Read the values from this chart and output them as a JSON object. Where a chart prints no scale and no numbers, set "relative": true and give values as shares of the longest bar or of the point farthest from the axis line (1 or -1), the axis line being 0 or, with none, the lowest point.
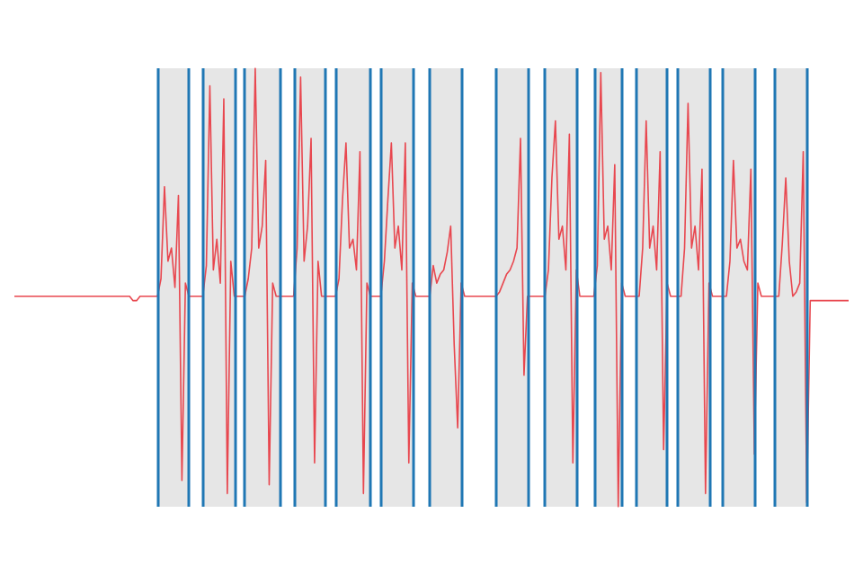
{
  "chart_data": {
    "type": "line",
    "relative": true,
    "marker": "none",
    "line_style": "solid",
    "categories": [
      null,
      null,
      null,
      null,
      null,
      null,
      null,
      null,
      null,
      null,
      null,
      null,
      null,
      null,
      null,
      null,
      null,
      null,
      null,
      null,
      null,
      null,
      null,
      null,
      null,
      null,
      null,
      null,
      null,
      null,
      null,
      null,
      null,
      null,
      null,
      null,
      null,
      null,
      null,
      null,
      null,
      null,
      null,
      null,
      null,
      null,
      null,
      null,
      null,
      null,
      null,
      null,
      null,
      null,
      null,
      null,
      null,
      null,
      null,
      null,
      null,
      null,
      null,
      null,
      null,
      null,
      null,
      null,
      null,
      null,
      null,
      null,
      null,
      null,
      null,
      null,
      null,
      null,
      null,
      null,
      null,
      null,
      null,
      null,
      null,
      null,
      null,
      null,
      null,
      null,
      null,
      null,
      null,
      null,
      null,
      null,
      null,
      null,
      null,
      null,
      null,
      null,
      null,
      null,
      null,
      null,
      null,
      null,
      null,
      null,
      null,
      null,
      null,
      null,
      null,
      null,
      null,
      null,
      null,
      null,
      null,
      null,
      null,
      null,
      null,
      null,
      null,
      null,
      null,
      null,
      null,
      null,
      null,
      null,
      null,
      null,
      null,
      null,
      null,
      null,
      null,
      null,
      null,
      null,
      null,
      null,
      null,
      null,
      null,
      null,
      null,
      null,
      null,
      null,
      null,
      null,
      null,
      null,
      null,
      null,
      null,
      null,
      null,
      null,
      null,
      null,
      null,
      null,
      null,
      null,
      null,
      null,
      null,
      null,
      null,
      null,
      null,
      null,
      null,
      null,
      null,
      null,
      null,
      null,
      null,
      null,
      null,
      null,
      null,
      null,
      null,
      null,
      null,
      null,
      null,
      null,
      null,
      null,
      null,
      null,
      null,
      null,
      null,
      null,
      null,
      null,
      null,
      null,
      null,
      null,
      null,
      null,
      null,
      null,
      null,
      null,
      null,
      null,
      null,
      null,
      null,
      null,
      null,
      null,
      null,
      null,
      null,
      null,
      null,
      null,
      null,
      null,
      null,
      null,
      null,
      null,
      null,
      null,
      null,
      null
    ],
    "series": [
      {
        "color": "#e8474f",
        "values": [
          0.48,
          0.48,
          0.48,
          0.48,
          0.48,
          0.48,
          0.48,
          0.48,
          0.48,
          0.48,
          0.48,
          0.48,
          0.48,
          0.48,
          0.48,
          0.48,
          0.48,
          0.48,
          0.48,
          0.48,
          0.48,
          0.48,
          0.48,
          0.48,
          0.48,
          0.48,
          0.48,
          0.48,
          0.48,
          0.48,
          0.48,
          0.48,
          0.48,
          0.48,
          0.47,
          0.47,
          0.48,
          0.48,
          0.48,
          0.48,
          0.48,
          0.48,
          0.52,
          0.73,
          0.56,
          0.59,
          0.5,
          0.71,
          0.06,
          0.51,
          0.48,
          0.48,
          0.48,
          0.48,
          0.48,
          0.55,
          0.96,
          0.54,
          0.61,
          0.51,
          0.93,
          0.03,
          0.56,
          0.48,
          0.48,
          0.48,
          0.48,
          0.52,
          0.59,
          1,
          0.59,
          0.64,
          0.79,
          0.05,
          0.51,
          0.48,
          0.48,
          0.48,
          0.48,
          0.48,
          0.48,
          0.59,
          0.98,
          0.56,
          0.64,
          0.84,
          0.1,
          0.56,
          0.48,
          0.48,
          0.48,
          0.48,
          0.48,
          0.52,
          0.7,
          0.83,
          0.59,
          0.61,
          0.54,
          0.81,
          0.03,
          0.51,
          0.48,
          0.48,
          0.48,
          0.48,
          0.56,
          0.7,
          0.83,
          0.59,
          0.64,
          0.54,
          0.83,
          0.1,
          0.51,
          0.48,
          0.48,
          0.48,
          0.48,
          0.48,
          0.55,
          0.51,
          0.53,
          0.54,
          0.58,
          0.64,
          0.37,
          0.18,
          0.51,
          0.48,
          0.48,
          0.48,
          0.48,
          0.48,
          0.48,
          0.48,
          0.48,
          0.48,
          0.48,
          0.49,
          0.51,
          0.53,
          0.54,
          0.56,
          0.59,
          0.84,
          0.3,
          0.48,
          0.48,
          0.48,
          0.48,
          0.48,
          0.48,
          0.54,
          0.75,
          0.88,
          0.61,
          0.64,
          0.54,
          0.85,
          0.1,
          0.54,
          0.48,
          0.48,
          0.48,
          0.48,
          0.48,
          0.55,
          0.99,
          0.61,
          0.64,
          0.54,
          0.78,
          0,
          0.51,
          0.48,
          0.48,
          0.48,
          0.48,
          0.48,
          0.59,
          0.88,
          0.59,
          0.64,
          0.54,
          0.81,
          0.13,
          0.51,
          0.48,
          0.48,
          0.48,
          0.48,
          0.59,
          0.92,
          0.59,
          0.64,
          0.54,
          0.77,
          0.03,
          0.51,
          0.48,
          0.48,
          0.48,
          0.48,
          0.48,
          0.56,
          0.79,
          0.59,
          0.61,
          0.56,
          0.54,
          0.77,
          0.12,
          0.51,
          0.48,
          0.48,
          0.48,
          0.48,
          0.48,
          0.48,
          0.6,
          0.75,
          0.56,
          0.48,
          0.49,
          0.51,
          0.81,
          0.01,
          0.47,
          0.47,
          0.47,
          0.47,
          0.47,
          0.47,
          0.47,
          0.47,
          0.47,
          0.47,
          0.47,
          0.47
        ]
      }
    ]
  }
}
